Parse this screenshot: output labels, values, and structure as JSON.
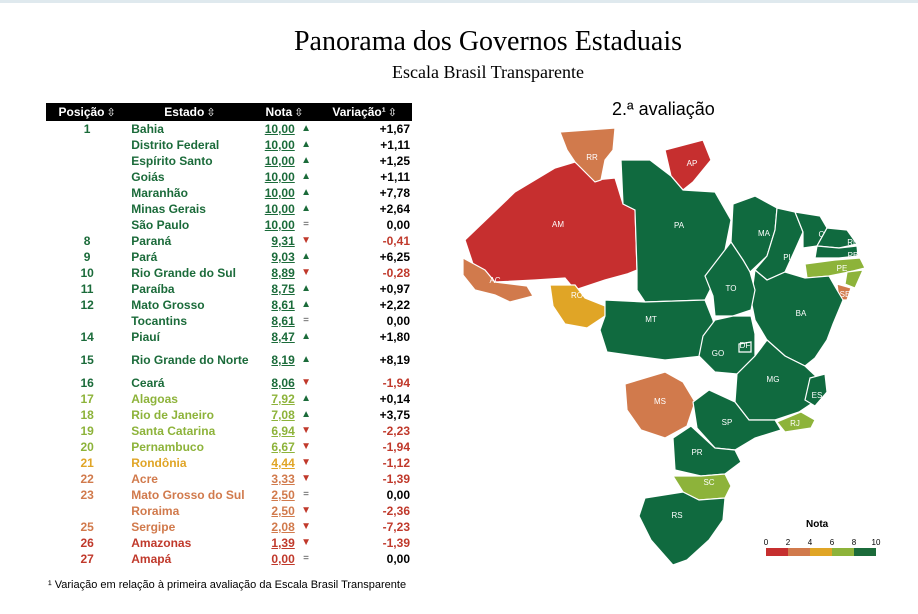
{
  "title": "Panorama dos Governos Estaduais",
  "subtitle": "Escala Brasil Transparente",
  "table": {
    "headers": {
      "position": "Posição",
      "state": "Estado",
      "score": "Nota",
      "variation": "Variação¹"
    },
    "rows": [
      {
        "pos": "1",
        "estado": "Bahia",
        "nota": "10,00",
        "trend": "up",
        "var": "+1,67",
        "color": "#1b6b3a"
      },
      {
        "pos": "",
        "estado": "Distrito Federal",
        "nota": "10,00",
        "trend": "up",
        "var": "+1,11",
        "color": "#1b6b3a"
      },
      {
        "pos": "",
        "estado": "Espírito Santo",
        "nota": "10,00",
        "trend": "up",
        "var": "+1,25",
        "color": "#1b6b3a"
      },
      {
        "pos": "",
        "estado": "Goiás",
        "nota": "10,00",
        "trend": "up",
        "var": "+1,11",
        "color": "#1b6b3a"
      },
      {
        "pos": "",
        "estado": "Maranhão",
        "nota": "10,00",
        "trend": "up",
        "var": "+7,78",
        "color": "#1b6b3a"
      },
      {
        "pos": "",
        "estado": "Minas Gerais",
        "nota": "10,00",
        "trend": "up",
        "var": "+2,64",
        "color": "#1b6b3a"
      },
      {
        "pos": "",
        "estado": "São Paulo",
        "nota": "10,00",
        "trend": "eq",
        "var": "0,00",
        "color": "#1b6b3a"
      },
      {
        "pos": "8",
        "estado": "Paraná",
        "nota": "9,31",
        "trend": "down",
        "var": "-0,41",
        "color": "#1b6b3a"
      },
      {
        "pos": "9",
        "estado": "Pará",
        "nota": "9,03",
        "trend": "up",
        "var": "+6,25",
        "color": "#1b6b3a"
      },
      {
        "pos": "10",
        "estado": "Rio Grande do Sul",
        "nota": "8,89",
        "trend": "down",
        "var": "-0,28",
        "color": "#1b6b3a"
      },
      {
        "pos": "11",
        "estado": "Paraíba",
        "nota": "8,75",
        "trend": "up",
        "var": "+0,97",
        "color": "#1b6b3a"
      },
      {
        "pos": "12",
        "estado": "Mato Grosso",
        "nota": "8,61",
        "trend": "up",
        "var": "+2,22",
        "color": "#1b6b3a"
      },
      {
        "pos": "",
        "estado": "Tocantins",
        "nota": "8,61",
        "trend": "eq",
        "var": "0,00",
        "color": "#1b6b3a"
      },
      {
        "pos": "14",
        "estado": "Piauí",
        "nota": "8,47",
        "trend": "up",
        "var": "+1,80",
        "color": "#1b6b3a"
      },
      {
        "pos": "15",
        "estado": "Rio Grande do Norte",
        "nota": "8,19",
        "trend": "up",
        "var": "+8,19",
        "color": "#1b6b3a",
        "tall": true
      },
      {
        "pos": "16",
        "estado": "Ceará",
        "nota": "8,06",
        "trend": "down",
        "var": "-1,94",
        "color": "#1b6b3a"
      },
      {
        "pos": "17",
        "estado": "Alagoas",
        "nota": "7,92",
        "trend": "up",
        "var": "+0,14",
        "color": "#8db33a"
      },
      {
        "pos": "18",
        "estado": "Rio de Janeiro",
        "nota": "7,08",
        "trend": "up",
        "var": "+3,75",
        "color": "#8db33a"
      },
      {
        "pos": "19",
        "estado": "Santa Catarina",
        "nota": "6,94",
        "trend": "down",
        "var": "-2,23",
        "color": "#8db33a"
      },
      {
        "pos": "20",
        "estado": "Pernambuco",
        "nota": "6,67",
        "trend": "down",
        "var": "-1,94",
        "color": "#8db33a"
      },
      {
        "pos": "21",
        "estado": "Rondônia",
        "nota": "4,44",
        "trend": "down",
        "var": "-1,12",
        "color": "#e0a526"
      },
      {
        "pos": "22",
        "estado": "Acre",
        "nota": "3,33",
        "trend": "down",
        "var": "-1,39",
        "color": "#d17a4c"
      },
      {
        "pos": "23",
        "estado": "Mato Grosso do Sul",
        "nota": "2,50",
        "trend": "eq",
        "var": "0,00",
        "color": "#d17a4c"
      },
      {
        "pos": "",
        "estado": "Roraima",
        "nota": "2,50",
        "trend": "down",
        "var": "-2,36",
        "color": "#d17a4c"
      },
      {
        "pos": "25",
        "estado": "Sergipe",
        "nota": "2,08",
        "trend": "down",
        "var": "-7,23",
        "color": "#d17a4c"
      },
      {
        "pos": "26",
        "estado": "Amazonas",
        "nota": "1,39",
        "trend": "down",
        "var": "-1,39",
        "color": "#c0392b"
      },
      {
        "pos": "27",
        "estado": "Amapá",
        "nota": "0,00",
        "trend": "eq",
        "var": "0,00",
        "color": "#c0392b"
      }
    ]
  },
  "footnote": "¹ Variação em relação à primeira avaliação da Escala Brasil Transparente",
  "map": {
    "title": "2.ª avaliação",
    "legend_title": "Nota",
    "legend_ticks": [
      "0",
      "2",
      "4",
      "6",
      "8",
      "10"
    ],
    "legend_colors": [
      "#c62f2f",
      "#d17a4c",
      "#e0a526",
      "#8db33a",
      "#1b6b3a"
    ],
    "states": [
      {
        "uf": "AM",
        "color": "#c62f2f"
      },
      {
        "uf": "RR",
        "color": "#d17a4c"
      },
      {
        "uf": "AP",
        "color": "#c62f2f"
      },
      {
        "uf": "PA",
        "color": "#106a3f"
      },
      {
        "uf": "AC",
        "color": "#d17a4c"
      },
      {
        "uf": "RO",
        "color": "#e0a526"
      },
      {
        "uf": "MT",
        "color": "#106a3f"
      },
      {
        "uf": "MA",
        "color": "#106a3f"
      },
      {
        "uf": "PI",
        "color": "#106a3f"
      },
      {
        "uf": "CE",
        "color": "#106a3f"
      },
      {
        "uf": "RN",
        "color": "#106a3f"
      },
      {
        "uf": "PB",
        "color": "#106a3f"
      },
      {
        "uf": "PE",
        "color": "#8db33a"
      },
      {
        "uf": "AL",
        "color": "#8db33a"
      },
      {
        "uf": "SE",
        "color": "#d17a4c"
      },
      {
        "uf": "BA",
        "color": "#106a3f"
      },
      {
        "uf": "TO",
        "color": "#106a3f"
      },
      {
        "uf": "GO",
        "color": "#106a3f"
      },
      {
        "uf": "DF",
        "color": "#106a3f"
      },
      {
        "uf": "MS",
        "color": "#d17a4c"
      },
      {
        "uf": "MG",
        "color": "#106a3f"
      },
      {
        "uf": "ES",
        "color": "#106a3f"
      },
      {
        "uf": "RJ",
        "color": "#8db33a"
      },
      {
        "uf": "SP",
        "color": "#106a3f"
      },
      {
        "uf": "PR",
        "color": "#106a3f"
      },
      {
        "uf": "SC",
        "color": "#8db33a"
      },
      {
        "uf": "RS",
        "color": "#106a3f"
      }
    ]
  },
  "chart_data": {
    "type": "table",
    "title": "Panorama dos Governos Estaduais",
    "subtitle": "Escala Brasil Transparente",
    "columns": [
      "Posição",
      "Estado",
      "Nota",
      "Variação¹"
    ],
    "rows": [
      [
        "1",
        "Bahia",
        10.0,
        1.67
      ],
      [
        "",
        "Distrito Federal",
        10.0,
        1.11
      ],
      [
        "",
        "Espírito Santo",
        10.0,
        1.25
      ],
      [
        "",
        "Goiás",
        10.0,
        1.11
      ],
      [
        "",
        "Maranhão",
        10.0,
        7.78
      ],
      [
        "",
        "Minas Gerais",
        10.0,
        2.64
      ],
      [
        "",
        "São Paulo",
        10.0,
        0.0
      ],
      [
        "8",
        "Paraná",
        9.31,
        -0.41
      ],
      [
        "9",
        "Pará",
        9.03,
        6.25
      ],
      [
        "10",
        "Rio Grande do Sul",
        8.89,
        -0.28
      ],
      [
        "11",
        "Paraíba",
        8.75,
        0.97
      ],
      [
        "12",
        "Mato Grosso",
        8.61,
        2.22
      ],
      [
        "",
        "Tocantins",
        8.61,
        0.0
      ],
      [
        "14",
        "Piauí",
        8.47,
        1.8
      ],
      [
        "15",
        "Rio Grande do Norte",
        8.19,
        8.19
      ],
      [
        "16",
        "Ceará",
        8.06,
        -1.94
      ],
      [
        "17",
        "Alagoas",
        7.92,
        0.14
      ],
      [
        "18",
        "Rio de Janeiro",
        7.08,
        3.75
      ],
      [
        "19",
        "Santa Catarina",
        6.94,
        -2.23
      ],
      [
        "20",
        "Pernambuco",
        6.67,
        -1.94
      ],
      [
        "21",
        "Rondônia",
        4.44,
        -1.12
      ],
      [
        "22",
        "Acre",
        3.33,
        -1.39
      ],
      [
        "23",
        "Mato Grosso do Sul",
        2.5,
        0.0
      ],
      [
        "",
        "Roraima",
        2.5,
        -2.36
      ],
      [
        "25",
        "Sergipe",
        2.08,
        -7.23
      ],
      [
        "26",
        "Amazonas",
        1.39,
        -1.39
      ],
      [
        "27",
        "Amapá",
        0.0,
        0.0
      ]
    ]
  }
}
